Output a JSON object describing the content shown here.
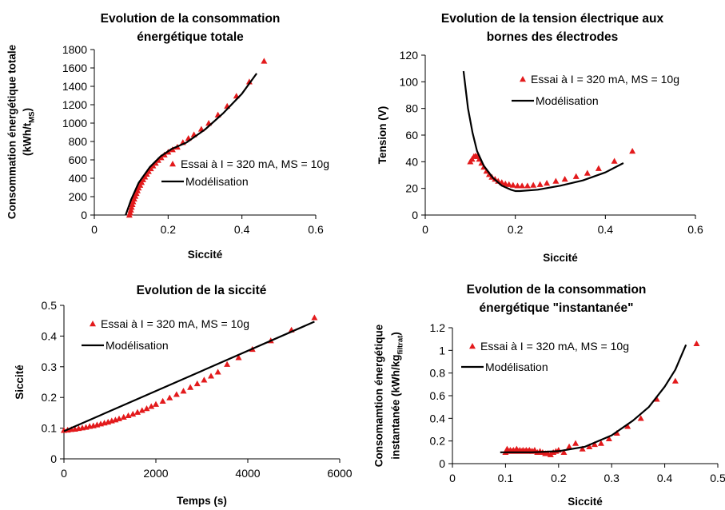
{
  "chart_data": [
    {
      "type": "scatter",
      "title": [
        "Evolution de la consommation",
        "énergétique totale"
      ],
      "xlabel": "Siccité",
      "ylabel": [
        "Consommation énergétique totale",
        "(kWh/t",
        "MS",
        ")"
      ],
      "xlim": [
        0,
        0.6
      ],
      "ylim": [
        0,
        1800
      ],
      "xticks": [
        0,
        0.2,
        0.4,
        0.6
      ],
      "xtick_labels": [
        "0",
        "0.2",
        "0.4",
        "0.6"
      ],
      "yticks": [
        0,
        200,
        400,
        600,
        800,
        1000,
        1200,
        1400,
        1600,
        1800
      ],
      "ytick_labels": [
        "0",
        "200",
        "400",
        "600",
        "800",
        "1000",
        "1200",
        "1400",
        "1600",
        "1800"
      ],
      "grid": false,
      "legend_position": "lower-right",
      "series": [
        {
          "name": "Essai à I = 320 mA, MS = 10g",
          "kind": "marker",
          "color": "#e31a1c",
          "points": [
            [
              0.095,
              0
            ],
            [
              0.097,
              25
            ],
            [
              0.099,
              55
            ],
            [
              0.101,
              85
            ],
            [
              0.103,
              115
            ],
            [
              0.105,
              145
            ],
            [
              0.108,
              175
            ],
            [
              0.111,
              205
            ],
            [
              0.114,
              235
            ],
            [
              0.117,
              265
            ],
            [
              0.12,
              295
            ],
            [
              0.124,
              325
            ],
            [
              0.128,
              355
            ],
            [
              0.132,
              385
            ],
            [
              0.137,
              415
            ],
            [
              0.142,
              445
            ],
            [
              0.147,
              475
            ],
            [
              0.153,
              505
            ],
            [
              0.159,
              535
            ],
            [
              0.166,
              565
            ],
            [
              0.173,
              595
            ],
            [
              0.181,
              625
            ],
            [
              0.19,
              655
            ],
            [
              0.2,
              685
            ],
            [
              0.212,
              712
            ],
            [
              0.225,
              740
            ],
            [
              0.24,
              790
            ],
            [
              0.255,
              835
            ],
            [
              0.27,
              875
            ],
            [
              0.29,
              935
            ],
            [
              0.31,
              1000
            ],
            [
              0.335,
              1090
            ],
            [
              0.36,
              1185
            ],
            [
              0.385,
              1295
            ],
            [
              0.42,
              1450
            ],
            [
              0.46,
              1675
            ]
          ]
        },
        {
          "name": "Modélisation",
          "kind": "line",
          "color": "#000000",
          "points": [
            [
              0.085,
              0
            ],
            [
              0.1,
              170
            ],
            [
              0.12,
              350
            ],
            [
              0.15,
              520
            ],
            [
              0.18,
              640
            ],
            [
              0.21,
              720
            ],
            [
              0.25,
              790
            ],
            [
              0.3,
              930
            ],
            [
              0.35,
              1110
            ],
            [
              0.4,
              1320
            ],
            [
              0.44,
              1540
            ]
          ]
        }
      ]
    },
    {
      "type": "scatter",
      "title": [
        "Evolution de la tension électrique aux",
        "bornes des électrodes"
      ],
      "xlabel": "Siccité",
      "ylabel": "Tension (V)",
      "xlim": [
        0,
        0.6
      ],
      "ylim": [
        0,
        120
      ],
      "xticks": [
        0,
        0.2,
        0.4,
        0.6
      ],
      "xtick_labels": [
        "0",
        "0.2",
        "0.4",
        "0.6"
      ],
      "yticks": [
        0,
        20,
        40,
        60,
        80,
        100,
        120
      ],
      "ytick_labels": [
        "0",
        "20",
        "40",
        "60",
        "80",
        "100",
        "120"
      ],
      "grid": false,
      "legend_position": "top-right",
      "series": [
        {
          "name": "Essai à I = 320 mA, MS = 10g",
          "kind": "marker",
          "color": "#e31a1c",
          "points": [
            [
              0.1,
              40
            ],
            [
              0.104,
              42
            ],
            [
              0.108,
              44
            ],
            [
              0.112,
              44.5
            ],
            [
              0.116,
              44
            ],
            [
              0.12,
              42
            ],
            [
              0.125,
              39
            ],
            [
              0.13,
              36
            ],
            [
              0.136,
              33
            ],
            [
              0.142,
              30.5
            ],
            [
              0.148,
              28.5
            ],
            [
              0.155,
              27
            ],
            [
              0.162,
              25.5
            ],
            [
              0.17,
              24.5
            ],
            [
              0.178,
              23.5
            ],
            [
              0.186,
              23
            ],
            [
              0.195,
              22.5
            ],
            [
              0.205,
              22
            ],
            [
              0.215,
              22
            ],
            [
              0.227,
              22
            ],
            [
              0.24,
              22.5
            ],
            [
              0.255,
              23
            ],
            [
              0.27,
              24
            ],
            [
              0.29,
              25.5
            ],
            [
              0.31,
              27
            ],
            [
              0.335,
              29
            ],
            [
              0.36,
              31.5
            ],
            [
              0.385,
              35
            ],
            [
              0.42,
              40.5
            ],
            [
              0.46,
              48
            ]
          ]
        },
        {
          "name": "Modélisation",
          "kind": "line",
          "color": "#000000",
          "points": [
            [
              0.085,
              108
            ],
            [
              0.095,
              80
            ],
            [
              0.105,
              62
            ],
            [
              0.115,
              48
            ],
            [
              0.13,
              37
            ],
            [
              0.15,
              28
            ],
            [
              0.17,
              22
            ],
            [
              0.19,
              19
            ],
            [
              0.2,
              18
            ],
            [
              0.21,
              18
            ],
            [
              0.25,
              19
            ],
            [
              0.3,
              22
            ],
            [
              0.35,
              26
            ],
            [
              0.4,
              32
            ],
            [
              0.44,
              39
            ]
          ]
        }
      ]
    },
    {
      "type": "scatter",
      "title": [
        "Evolution de la siccité"
      ],
      "xlabel": "Temps (s)",
      "ylabel": "Siccité",
      "xlim": [
        0,
        6000
      ],
      "ylim": [
        0,
        0.5
      ],
      "xticks": [
        0,
        2000,
        4000,
        6000
      ],
      "xtick_labels": [
        "0",
        "2000",
        "4000",
        "6000"
      ],
      "yticks": [
        0,
        0.1,
        0.2,
        0.3,
        0.4,
        0.5
      ],
      "ytick_labels": [
        "0",
        "0.1",
        "0.2",
        "0.3",
        "0.4",
        "0.5"
      ],
      "grid": false,
      "legend_position": "top-left",
      "series": [
        {
          "name": "Essai à I = 320 mA, MS = 10g",
          "kind": "marker",
          "color": "#e31a1c",
          "points": [
            [
              0,
              0.093
            ],
            [
              80,
              0.094
            ],
            [
              160,
              0.096
            ],
            [
              240,
              0.097
            ],
            [
              320,
              0.099
            ],
            [
              400,
              0.101
            ],
            [
              480,
              0.103
            ],
            [
              560,
              0.106
            ],
            [
              640,
              0.108
            ],
            [
              720,
              0.111
            ],
            [
              800,
              0.114
            ],
            [
              880,
              0.117
            ],
            [
              960,
              0.12
            ],
            [
              1040,
              0.124
            ],
            [
              1120,
              0.127
            ],
            [
              1200,
              0.131
            ],
            [
              1300,
              0.136
            ],
            [
              1400,
              0.141
            ],
            [
              1500,
              0.146
            ],
            [
              1600,
              0.152
            ],
            [
              1700,
              0.158
            ],
            [
              1800,
              0.164
            ],
            [
              1900,
              0.171
            ],
            [
              2000,
              0.178
            ],
            [
              2150,
              0.188
            ],
            [
              2300,
              0.199
            ],
            [
              2450,
              0.21
            ],
            [
              2600,
              0.221
            ],
            [
              2750,
              0.233
            ],
            [
              2900,
              0.245
            ],
            [
              3050,
              0.257
            ],
            [
              3200,
              0.27
            ],
            [
              3350,
              0.283
            ],
            [
              3550,
              0.308
            ],
            [
              3800,
              0.33
            ],
            [
              4100,
              0.357
            ],
            [
              4500,
              0.385
            ],
            [
              4950,
              0.42
            ],
            [
              5450,
              0.46
            ]
          ]
        },
        {
          "name": "Modélisation",
          "kind": "line",
          "color": "#000000",
          "points": [
            [
              0,
              0.09
            ],
            [
              5450,
              0.447
            ]
          ]
        }
      ]
    },
    {
      "type": "scatter",
      "title": [
        "Evolution de la consommation",
        "énergétique \"instantanée\""
      ],
      "xlabel": "Siccité",
      "ylabel": [
        "Consomamtion énergétique",
        "instantanée (kWh/kg",
        "filtrat",
        ")"
      ],
      "xlim": [
        0,
        0.5
      ],
      "ylim": [
        0,
        1.2
      ],
      "xticks": [
        0,
        0.1,
        0.2,
        0.3,
        0.4,
        0.5
      ],
      "xtick_labels": [
        "0",
        "0.1",
        "0.2",
        "0.3",
        "0.4",
        "0.5"
      ],
      "yticks": [
        0,
        0.2,
        0.4,
        0.6,
        0.8,
        1,
        1.2
      ],
      "ytick_labels": [
        "0",
        "0.2",
        "0.4",
        "0.6",
        "0.8",
        "1",
        "1.2"
      ],
      "grid": false,
      "legend_position": "top-left",
      "series": [
        {
          "name": "Essai à I = 320 mA, MS = 10g",
          "kind": "marker",
          "color": "#e31a1c",
          "points": [
            [
              0.1,
              0.1
            ],
            [
              0.103,
              0.13
            ],
            [
              0.106,
              0.11
            ],
            [
              0.109,
              0.12
            ],
            [
              0.112,
              0.11
            ],
            [
              0.115,
              0.12
            ],
            [
              0.118,
              0.11
            ],
            [
              0.121,
              0.13
            ],
            [
              0.124,
              0.11
            ],
            [
              0.127,
              0.12
            ],
            [
              0.13,
              0.11
            ],
            [
              0.133,
              0.12
            ],
            [
              0.136,
              0.11
            ],
            [
              0.139,
              0.12
            ],
            [
              0.142,
              0.11
            ],
            [
              0.145,
              0.12
            ],
            [
              0.148,
              0.11
            ],
            [
              0.151,
              0.11
            ],
            [
              0.155,
              0.12
            ],
            [
              0.16,
              0.1
            ],
            [
              0.165,
              0.11
            ],
            [
              0.17,
              0.1
            ],
            [
              0.175,
              0.09
            ],
            [
              0.18,
              0.09
            ],
            [
              0.185,
              0.08
            ],
            [
              0.19,
              0.1
            ],
            [
              0.195,
              0.11
            ],
            [
              0.2,
              0.12
            ],
            [
              0.21,
              0.1
            ],
            [
              0.22,
              0.15
            ],
            [
              0.232,
              0.18
            ],
            [
              0.245,
              0.13
            ],
            [
              0.258,
              0.15
            ],
            [
              0.268,
              0.17
            ],
            [
              0.28,
              0.18
            ],
            [
              0.295,
              0.22
            ],
            [
              0.31,
              0.27
            ],
            [
              0.33,
              0.33
            ],
            [
              0.355,
              0.4
            ],
            [
              0.385,
              0.57
            ],
            [
              0.42,
              0.73
            ],
            [
              0.46,
              1.06
            ]
          ]
        },
        {
          "name": "Modélisation",
          "kind": "line",
          "color": "#000000",
          "points": [
            [
              0.09,
              0.1
            ],
            [
              0.15,
              0.1
            ],
            [
              0.2,
              0.11
            ],
            [
              0.25,
              0.15
            ],
            [
              0.3,
              0.25
            ],
            [
              0.34,
              0.38
            ],
            [
              0.37,
              0.5
            ],
            [
              0.4,
              0.68
            ],
            [
              0.42,
              0.83
            ],
            [
              0.44,
              1.05
            ]
          ]
        }
      ]
    }
  ]
}
